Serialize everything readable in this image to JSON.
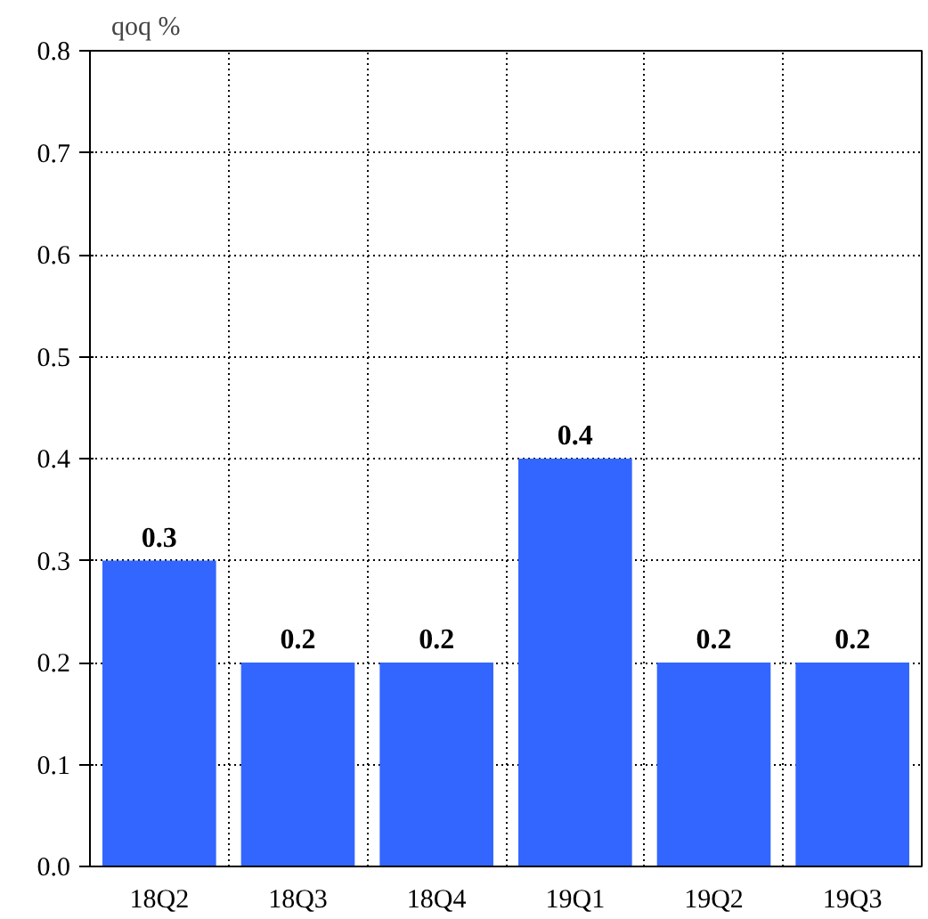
{
  "chart_data": {
    "type": "bar",
    "ylabel": "qoq %",
    "categories": [
      "18Q2",
      "18Q3",
      "18Q4",
      "19Q1",
      "19Q2",
      "19Q3"
    ],
    "values": [
      0.3,
      0.2,
      0.2,
      0.4,
      0.2,
      0.2
    ],
    "color": "#3366ff",
    "ylim": [
      0,
      0.8
    ],
    "yticks": [
      {
        "value": 0,
        "label": "0.0"
      },
      0.1,
      0.2,
      0.3,
      0.4,
      0.5,
      0.6,
      0.7,
      0.8
    ],
    "grid": true,
    "data_labels": true
  }
}
